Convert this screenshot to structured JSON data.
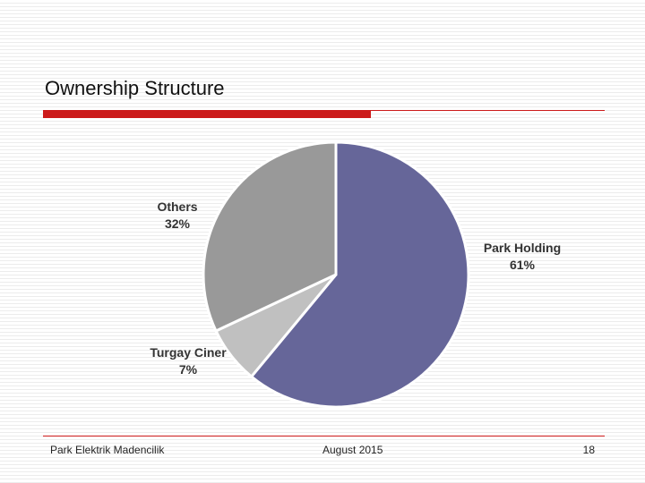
{
  "slide": {
    "title": "Ownership Structure",
    "footer": {
      "left": "Park Elektrik Madencilik",
      "center": "August 2015",
      "right": 18
    }
  },
  "chart_data": {
    "type": "pie",
    "categories": [
      "Park Holding",
      "Turgay Ciner",
      "Others"
    ],
    "values": [
      61,
      7,
      32
    ],
    "value_labels": [
      "61%",
      "7%",
      "32%"
    ],
    "colors": [
      "#666699",
      "#c0c0c0",
      "#999999"
    ]
  }
}
